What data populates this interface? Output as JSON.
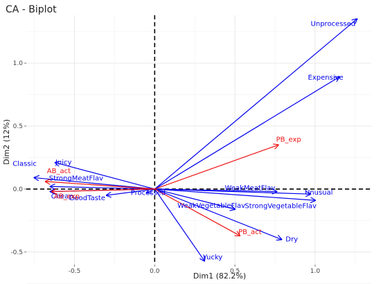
{
  "chart_data": {
    "type": "biplot",
    "title": "CA - Biplot",
    "xlabel": "Dim1 (82.2%)",
    "ylabel": "Dim2 (12%)",
    "xlim": [
      -0.8,
      1.35
    ],
    "ylim": [
      -0.6,
      1.38
    ],
    "x_ticks": [
      -0.5,
      0.0,
      0.5,
      1.0
    ],
    "x_tick_labels": [
      "-0.5",
      "0.0",
      "0.5",
      "1.0"
    ],
    "y_ticks": [
      -0.5,
      0.0,
      0.5,
      1.0
    ],
    "y_tick_labels": [
      "-0.5",
      "0.0",
      "0.5",
      "1.0"
    ],
    "grid": true,
    "reference_lines": [
      0,
      0
    ],
    "colors": {
      "columns": "#0000ee",
      "rows": "#ee1111"
    },
    "series": [
      {
        "group": "columns",
        "color": "#0000ee",
        "points": [
          {
            "label": "Unprocessed",
            "x": 1.26,
            "y": 1.35
          },
          {
            "label": "Expensive",
            "x": 1.15,
            "y": 0.89
          },
          {
            "label": "Unusual",
            "x": 0.97,
            "y": -0.04
          },
          {
            "label": "WeakMeatFlav",
            "x": 0.76,
            "y": -0.02
          },
          {
            "label": "StrongVegetableFlav",
            "x": 1.0,
            "y": -0.09
          },
          {
            "label": "WeakVegetableFlav",
            "x": 0.5,
            "y": -0.16
          },
          {
            "label": "Dry",
            "x": 0.79,
            "y": -0.4
          },
          {
            "label": "Yucky",
            "x": 0.31,
            "y": -0.57
          },
          {
            "label": "Juicy",
            "x": -0.62,
            "y": 0.21
          },
          {
            "label": "Classic",
            "x": -0.75,
            "y": 0.09
          },
          {
            "label": "StrongMeatFlav",
            "x": -0.65,
            "y": 0.02
          },
          {
            "label": "Cheap",
            "x": -0.65,
            "y": -0.02
          },
          {
            "label": "GoodTaste",
            "x": -0.3,
            "y": -0.05
          },
          {
            "label": "Processed",
            "x": -0.05,
            "y": -0.03
          }
        ]
      },
      {
        "group": "rows",
        "color": "#ee1111",
        "points": [
          {
            "label": "PB_exp",
            "x": 0.77,
            "y": 0.35
          },
          {
            "label": "PB_act",
            "x": 0.53,
            "y": -0.37
          },
          {
            "label": "AB_act",
            "x": -0.68,
            "y": 0.06
          },
          {
            "label": "AB_exp",
            "x": -0.64,
            "y": -0.02
          }
        ]
      }
    ]
  }
}
